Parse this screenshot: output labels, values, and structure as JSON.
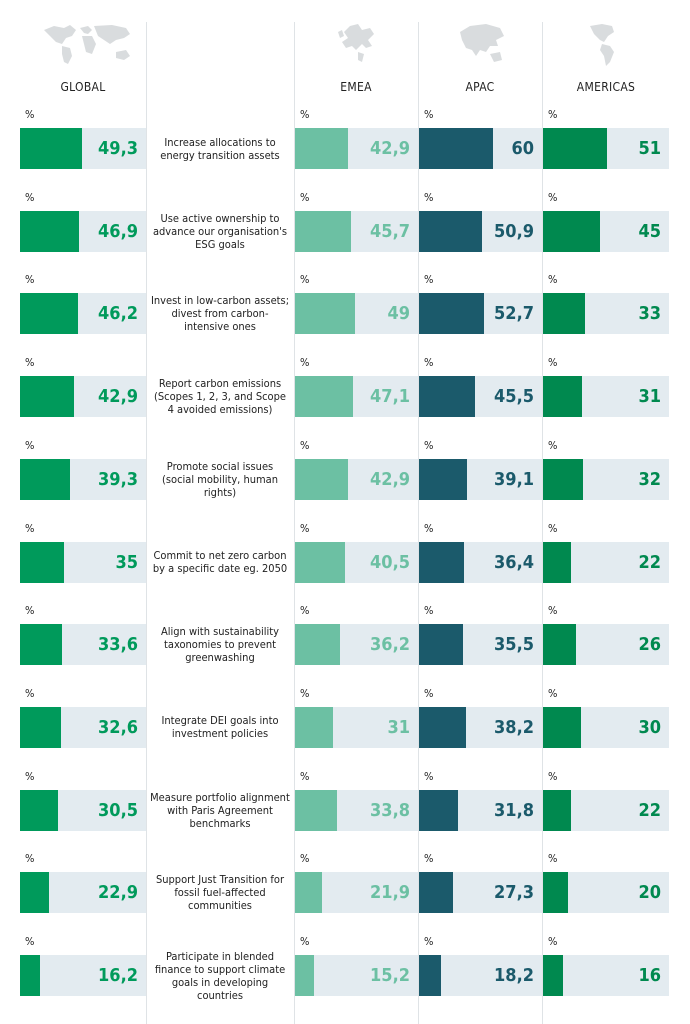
{
  "headers": {
    "global": "GLOBAL",
    "emea": "EMEA",
    "apac": "APAC",
    "americas": "AMERICAS"
  },
  "pct_symbol": "%",
  "colors": {
    "global": "#009a5b",
    "emea": "#6cc0a3",
    "apac": "#1b5a6b",
    "americas": "#00894f",
    "track": "#e3ebf0"
  },
  "icons": {
    "global": "world-map-icon",
    "emea": "europe-map-icon",
    "apac": "asia-map-icon",
    "americas": "americas-map-icon"
  },
  "chart_data": {
    "type": "bar",
    "value_format": "decimal-comma",
    "categories": [
      "Increase allocations to energy transition assets",
      "Use active ownership to advance our organisation's ESG goals",
      "Invest in low-carbon assets; divest from carbon-intensive ones",
      "Report carbon emissions (Scopes 1, 2, 3, and Scope 4 avoided emissions)",
      "Promote social issues (social mobility, human rights)",
      "Commit to net zero carbon by a specific date eg. 2050",
      "Align with sustainability taxonomies to prevent greenwashing",
      "Integrate DEI goals into investment policies",
      "Measure portfolio alignment with Paris Agreement benchmarks",
      "Support Just Transition for fossil fuel-affected communities",
      "Participate in blended finance to support climate goals in developing countries"
    ],
    "ylim": [
      0,
      100
    ],
    "series": [
      {
        "name": "GLOBAL",
        "values": [
          49.3,
          46.9,
          46.2,
          42.9,
          39.3,
          35,
          33.6,
          32.6,
          30.5,
          22.9,
          16.2
        ]
      },
      {
        "name": "EMEA",
        "values": [
          42.9,
          45.7,
          49,
          47.1,
          42.9,
          40.5,
          36.2,
          31,
          33.8,
          21.9,
          15.2
        ]
      },
      {
        "name": "APAC",
        "values": [
          60,
          50.9,
          52.7,
          45.5,
          39.1,
          36.4,
          35.5,
          38.2,
          31.8,
          27.3,
          18.2
        ]
      },
      {
        "name": "AMERICAS",
        "values": [
          51,
          45,
          33,
          31,
          32,
          22,
          26,
          30,
          22,
          20,
          16
        ]
      }
    ]
  }
}
